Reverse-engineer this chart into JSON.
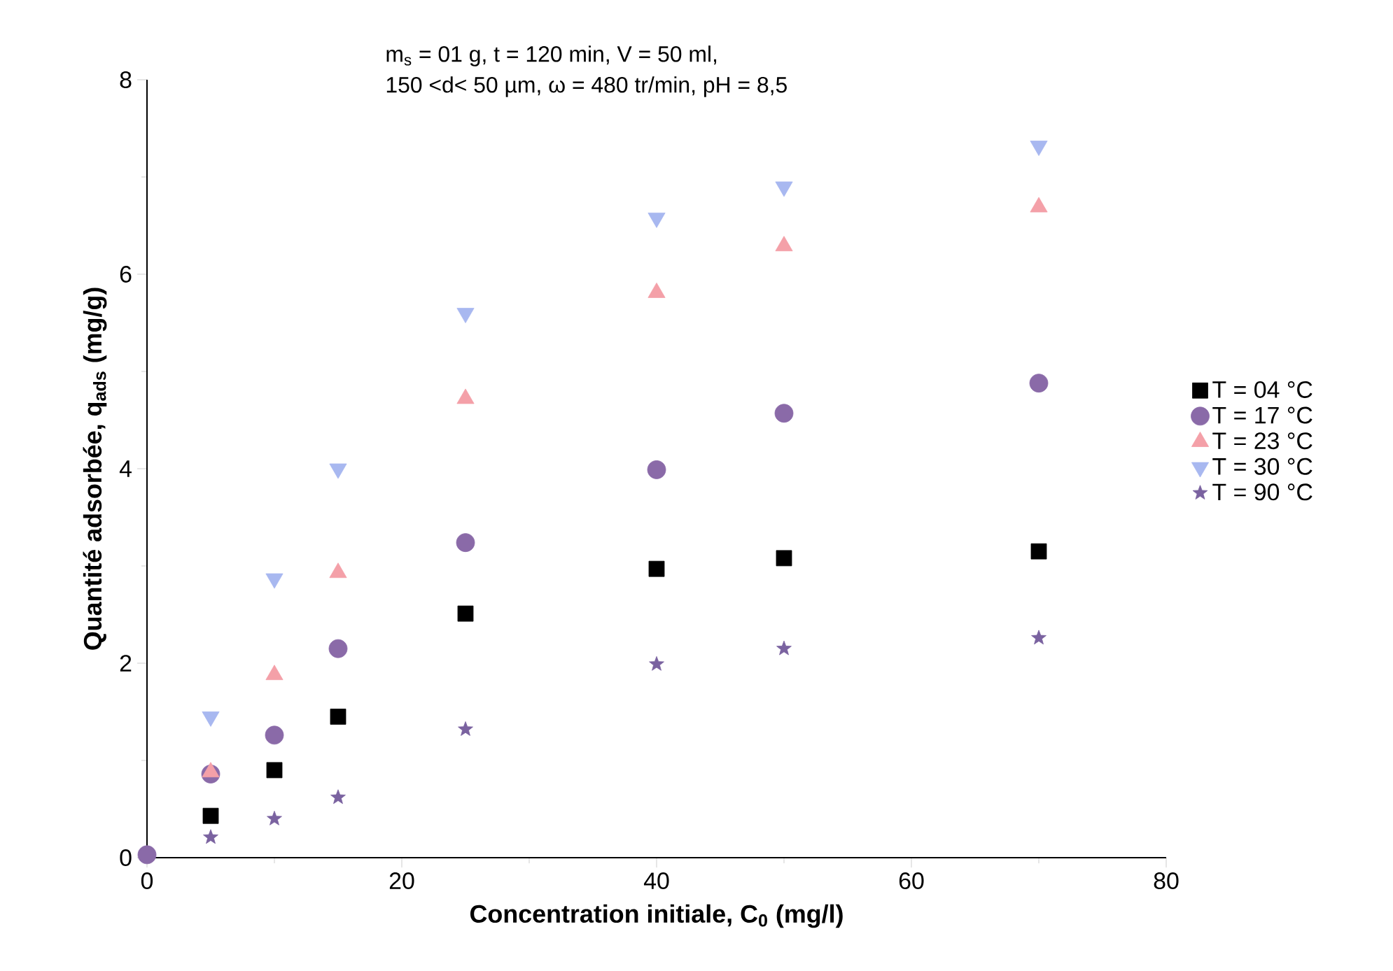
{
  "chart_data": {
    "type": "scatter",
    "xlabel": "Concentration initiale, C$_{0}$ (mg/l)",
    "ylabel": "Quantité adsorbée, q$_{ads}$ (mg/g)",
    "annotations": [
      "m$_{s}$ = 01 g, t = 120 min, V = 50 ml,",
      "150 <d< 50 µm, ω = 480 tr/min, pH = 8,5"
    ],
    "xlim": [
      0,
      80
    ],
    "xticks": [
      0,
      20,
      40,
      60,
      80
    ],
    "ylim": [
      0,
      8
    ],
    "yticks": [
      0,
      2,
      4,
      6,
      8
    ],
    "legend": "right",
    "series": [
      {
        "name": "T = 04 °C",
        "color": "#000000",
        "marker": "square",
        "x": [
          5,
          10,
          15,
          25,
          40,
          50,
          70
        ],
        "values": [
          0.43,
          0.9,
          1.45,
          2.51,
          2.97,
          3.08,
          3.15
        ]
      },
      {
        "name": "T = 17 °C",
        "color": "#8a6aa8",
        "marker": "circle",
        "x": [
          0,
          5,
          10,
          15,
          25,
          40,
          50,
          70
        ],
        "values": [
          0.03,
          0.86,
          1.26,
          2.15,
          3.24,
          3.99,
          4.57,
          4.88
        ]
      },
      {
        "name": "T = 23 °C",
        "color": "#f4a0a8",
        "marker": "triangle",
        "x": [
          5,
          10,
          15,
          25,
          40,
          50,
          70
        ],
        "values": [
          0.88,
          1.88,
          2.93,
          4.72,
          5.81,
          6.29,
          6.69
        ]
      },
      {
        "name": "T = 30 °C",
        "color": "#a8b8f0",
        "marker": "triangle-down",
        "x": [
          5,
          10,
          15,
          25,
          40,
          50,
          70
        ],
        "values": [
          1.45,
          2.87,
          4.0,
          5.6,
          6.58,
          6.9,
          7.32
        ]
      },
      {
        "name": "T = 90 °C",
        "color": "#7a62a0",
        "marker": "star",
        "x": [
          5,
          10,
          15,
          25,
          40,
          50,
          70
        ],
        "values": [
          0.21,
          0.4,
          0.62,
          1.32,
          1.99,
          2.15,
          2.26
        ]
      }
    ]
  }
}
